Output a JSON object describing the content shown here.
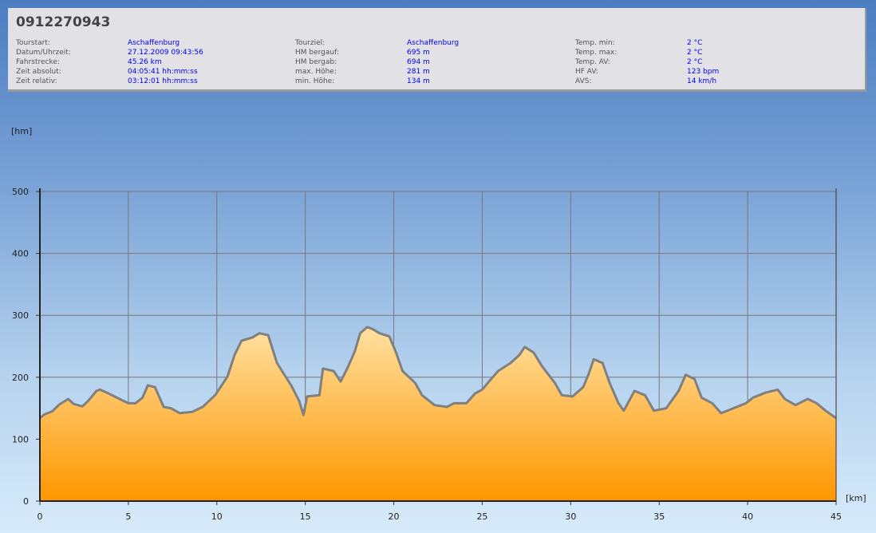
{
  "header": {
    "title": "0912270943",
    "groups": [
      {
        "rows": [
          [
            "Tourstart:",
            "Aschaffenburg"
          ],
          [
            "Datum/Uhrzeit:",
            "27.12.2009 09:43:56"
          ],
          [
            "Fahrstrecke:",
            "45.26 km"
          ],
          [
            "Zeit absolut:",
            "04:05:41 hh:mm:ss"
          ],
          [
            "Zeit relativ:",
            "03:12:01 hh:mm:ss"
          ]
        ]
      },
      {
        "rows": [
          [
            "Tourziel:",
            "Aschaffenburg"
          ],
          [
            "HM bergauf:",
            "695 m"
          ],
          [
            "HM bergab:",
            "694 m"
          ],
          [
            "max. Höhe:",
            "281 m"
          ],
          [
            "min. Höhe:",
            "134 m"
          ]
        ]
      },
      {
        "rows": [
          [
            "Temp. min:",
            "2 °C"
          ],
          [
            "Temp. max:",
            "2 °C"
          ],
          [
            "Temp. AV:",
            "2 °C"
          ],
          [
            "HF AV:",
            "123 bpm"
          ],
          [
            "AVS:",
            "14 km/h"
          ]
        ]
      }
    ]
  },
  "chart_data": {
    "type": "area",
    "title": "",
    "xlabel": "[km]",
    "ylabel": "[hm]",
    "xlim": [
      0,
      45
    ],
    "ylim": [
      0,
      500
    ],
    "xticks": [
      "0",
      "5",
      "10",
      "15",
      "20",
      "25",
      "30",
      "35",
      "40",
      "45"
    ],
    "yticks": [
      "0",
      "100",
      "200",
      "300",
      "400",
      "500"
    ],
    "grid": true,
    "colors": {
      "line": "#808080",
      "fill_top": "#ffe0a0",
      "fill_bottom": "#ff9600"
    },
    "x": [
      0,
      0.25,
      0.7,
      1.1,
      1.6,
      1.9,
      2.4,
      2.7,
      3.2,
      3.4,
      3.8,
      4.5,
      5,
      5.4,
      5.8,
      6.1,
      6.5,
      7.0,
      7.4,
      7.9,
      8.6,
      9.2,
      9.9,
      10.6,
      11.0,
      11.4,
      12.0,
      12.4,
      12.9,
      13.4,
      14.2,
      14.65,
      14.9,
      15.1,
      15.8,
      16.0,
      16.6,
      17.0,
      17.4,
      17.8,
      18.1,
      18.5,
      18.8,
      19.2,
      19.75,
      20.1,
      20.5,
      21.2,
      21.6,
      22.3,
      23.0,
      23.4,
      24.1,
      24.6,
      25.0,
      25.5,
      25.9,
      26.6,
      27.1,
      27.4,
      27.9,
      28.4,
      29.1,
      29.5,
      30.1,
      30.7,
      31.0,
      31.3,
      31.8,
      32.2,
      32.7,
      33.0,
      33.6,
      34.2,
      34.7,
      35.4,
      36.1,
      36.5,
      37.0,
      37.4,
      38.0,
      38.5,
      39.2,
      39.9,
      40.3,
      41.0,
      41.7,
      42.1,
      42.7,
      43.4,
      43.9,
      44.4,
      45
    ],
    "y": [
      134,
      140,
      145,
      156,
      165,
      157,
      153,
      161,
      178,
      180,
      175,
      165,
      158,
      158,
      167,
      187,
      184,
      152,
      150,
      142,
      144,
      152,
      171,
      201,
      236,
      259,
      264,
      271,
      268,
      223,
      187,
      162,
      139,
      169,
      171,
      214,
      210,
      193,
      216,
      242,
      271,
      281,
      278,
      271,
      266,
      242,
      210,
      191,
      171,
      155,
      152,
      158,
      158,
      174,
      180,
      197,
      210,
      223,
      236,
      249,
      240,
      217,
      191,
      171,
      169,
      184,
      204,
      229,
      223,
      191,
      158,
      146,
      178,
      171,
      146,
      150,
      178,
      204,
      197,
      167,
      158,
      142,
      150,
      158,
      167,
      175,
      180,
      165,
      155,
      165,
      158,
      146,
      134
    ]
  }
}
